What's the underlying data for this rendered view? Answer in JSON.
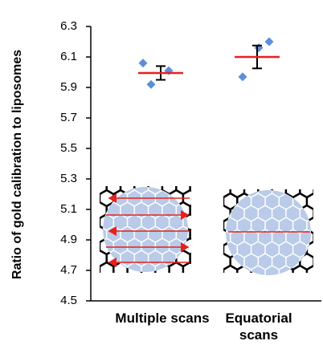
{
  "chart_data": {
    "type": "dot",
    "y_label": "Ratio of gold calibration to liposomes",
    "categories": [
      "Multiple scans",
      "Equatorial scans"
    ],
    "points": [
      [
        6.06,
        5.92,
        6.01
      ],
      [
        5.97,
        6.16,
        6.2
      ]
    ],
    "means": [
      5.995,
      6.1
    ],
    "errors": [
      0.045,
      0.075
    ],
    "point_color": "#5b8fd9",
    "mean_color": "#e8201c",
    "error_color": "#000000",
    "ylim": [
      4.5,
      6.3
    ],
    "yticks": [
      4.5,
      4.7,
      4.9,
      5.1,
      5.3,
      5.5,
      5.7,
      5.9,
      6.1,
      6.3
    ]
  }
}
